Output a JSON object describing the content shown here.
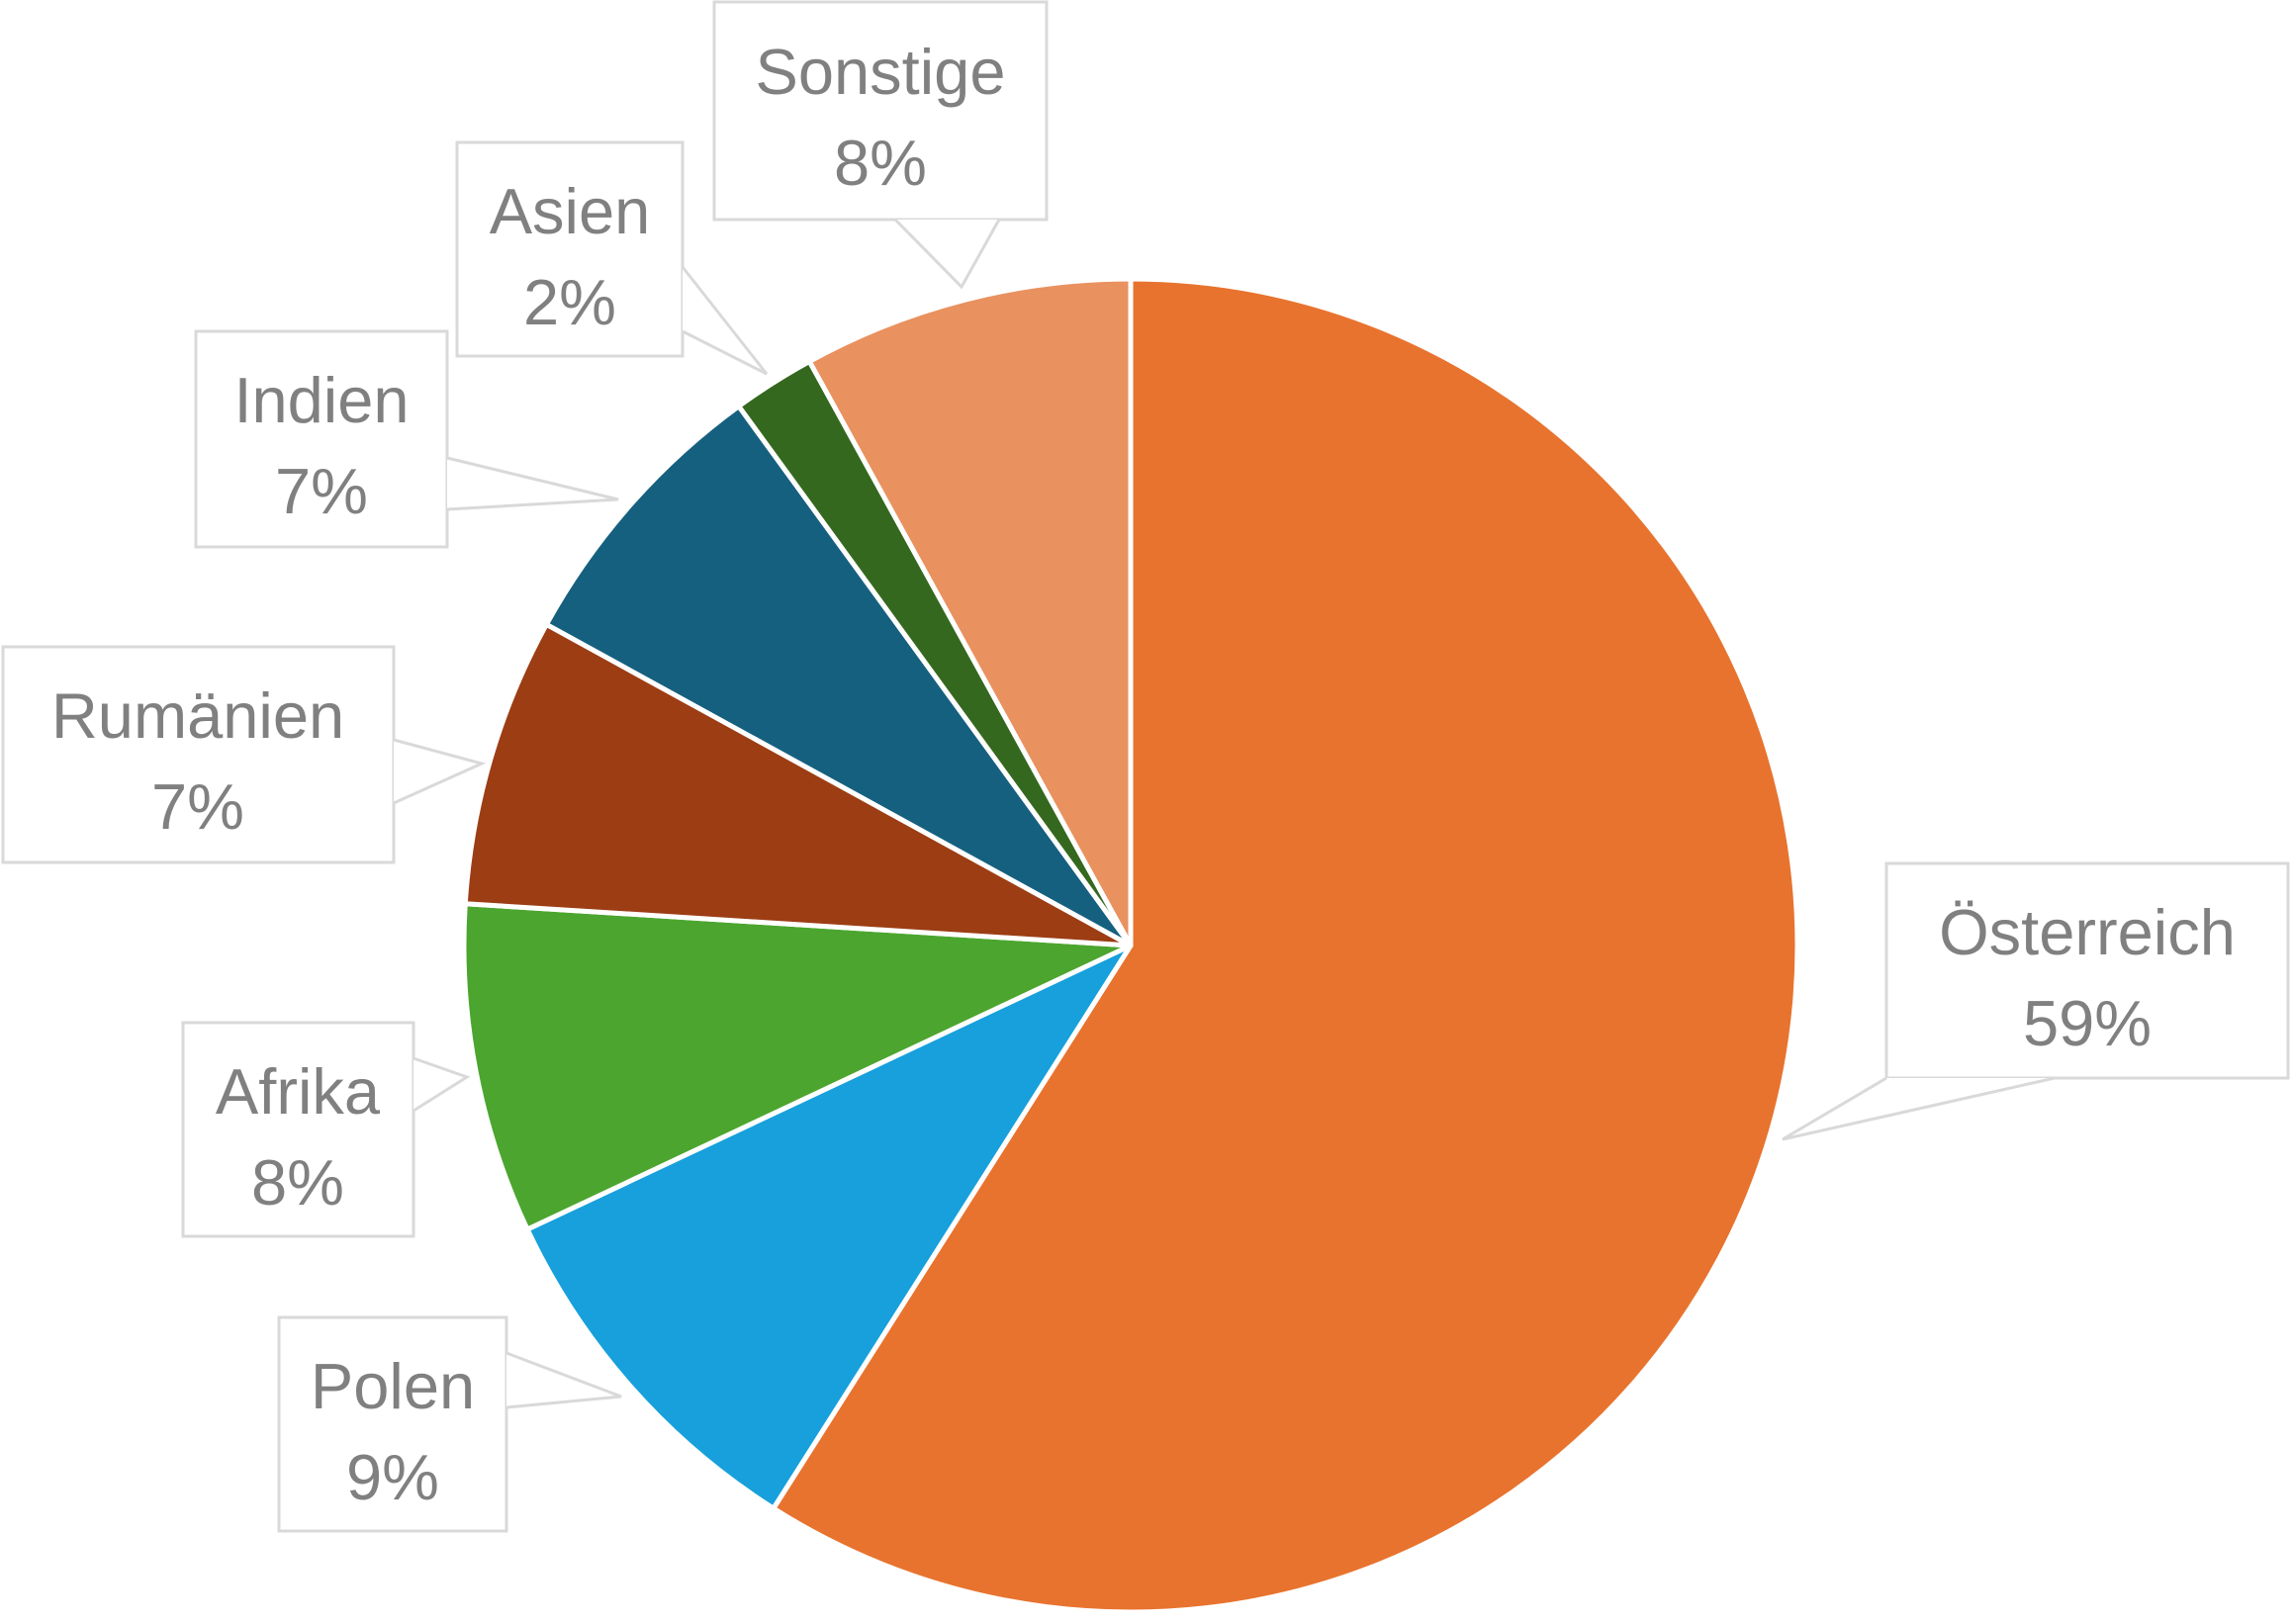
{
  "chart_data": {
    "type": "pie",
    "start_angle_deg": 0,
    "direction": "clockwise",
    "legend_position": "none",
    "labels_style": "callout-boxes",
    "slices": [
      {
        "id": "oesterreich",
        "label": "Österreich",
        "pct_label": "59%",
        "value": 59,
        "color": "#E8732E"
      },
      {
        "id": "polen",
        "label": "Polen",
        "pct_label": "9%",
        "value": 9,
        "color": "#17A0DB"
      },
      {
        "id": "afrika",
        "label": "Afrika",
        "pct_label": "8%",
        "value": 8,
        "color": "#4CA52F"
      },
      {
        "id": "rumaenien",
        "label": "Rumänien",
        "pct_label": "7%",
        "value": 7,
        "color": "#9C3D14"
      },
      {
        "id": "indien",
        "label": "Indien",
        "pct_label": "7%",
        "value": 7,
        "color": "#15607F"
      },
      {
        "id": "asien",
        "label": "Asien",
        "pct_label": "2%",
        "value": 2,
        "color": "#35681F"
      },
      {
        "id": "sonstige",
        "label": "Sonstige",
        "pct_label": "8%",
        "value": 8,
        "color": "#E9915F"
      }
    ],
    "colors": {
      "label_text": "#808080",
      "callout_border": "#D9D9D9",
      "callout_fill": "#FFFFFF",
      "slice_divider": "#FFFFFF"
    }
  }
}
